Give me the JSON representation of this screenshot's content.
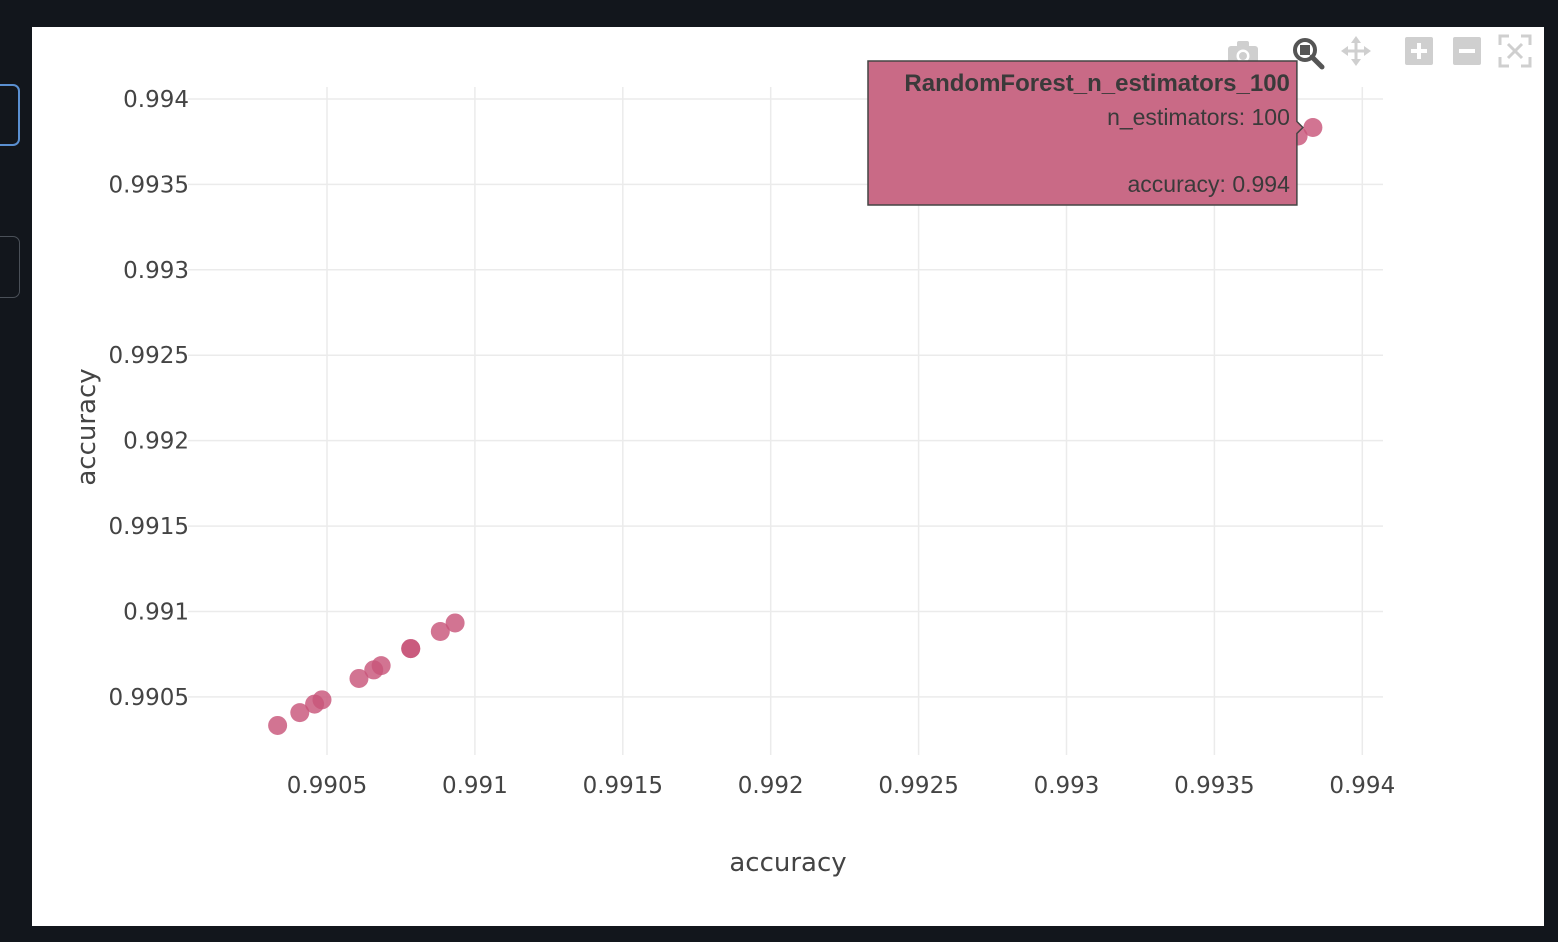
{
  "chart_data": {
    "type": "scatter",
    "xlabel": "accuracy",
    "ylabel": "accuracy",
    "xlim": [
      0.99003,
      0.99407
    ],
    "ylim": [
      0.99016,
      0.99407
    ],
    "x_ticks": [
      "0.9905",
      "0.991",
      "0.9915",
      "0.992",
      "0.9925",
      "0.993",
      "0.9935",
      "0.994"
    ],
    "y_ticks": [
      "0.9905",
      "0.991",
      "0.9915",
      "0.992",
      "0.9925",
      "0.993",
      "0.9935",
      "0.994"
    ],
    "marker_color": "#c8557a",
    "grid": true,
    "points": [
      {
        "x": 0.990333,
        "y": 0.990333
      },
      {
        "x": 0.990408,
        "y": 0.990408
      },
      {
        "x": 0.990458,
        "y": 0.990458
      },
      {
        "x": 0.990483,
        "y": 0.990483
      },
      {
        "x": 0.990608,
        "y": 0.990608
      },
      {
        "x": 0.990658,
        "y": 0.990658
      },
      {
        "x": 0.990683,
        "y": 0.990683
      },
      {
        "x": 0.990783,
        "y": 0.990783
      },
      {
        "x": 0.990783,
        "y": 0.990783
      },
      {
        "x": 0.990883,
        "y": 0.990883
      },
      {
        "x": 0.990933,
        "y": 0.990933
      },
      {
        "x": 0.993783,
        "y": 0.993783
      },
      {
        "x": 0.993833,
        "y": 0.993833
      }
    ],
    "hover": {
      "title": "RandomForest_n_estimators_100",
      "line1": "n_estimators: 100",
      "line2": "accuracy: 0.994",
      "color": "#c96a86",
      "point_index": 12
    }
  },
  "modebar": {
    "icons": [
      "camera-icon",
      "zoom-icon",
      "pan-icon",
      "zoom-in-icon",
      "zoom-out-icon",
      "autoscale-icon"
    ]
  }
}
